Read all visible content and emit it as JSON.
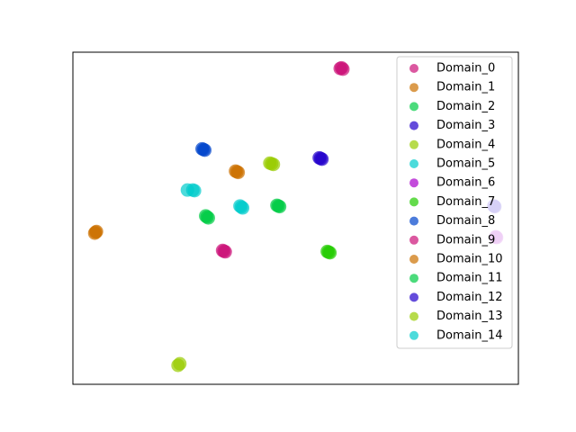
{
  "chart_data": {
    "type": "scatter",
    "xlim": [
      0,
      100
    ],
    "ylim": [
      0,
      100
    ],
    "legend": "upper right",
    "opacity": 0.7,
    "series": [
      {
        "name": "Domain_0",
        "color": "#cc1177",
        "x": [
          60.0,
          60.6,
          60.3
        ],
        "values": [
          95.1,
          94.9,
          95.3
        ]
      },
      {
        "name": "Domain_1",
        "color": "#cc7000",
        "x": [
          5.1,
          5.3,
          4.9
        ],
        "values": [
          45.8,
          46.0,
          45.5
        ]
      },
      {
        "name": "Domain_2",
        "color": "#00cc44",
        "x": [
          30.1,
          29.8,
          30.4
        ],
        "values": [
          50.4,
          50.7,
          50.1
        ]
      },
      {
        "name": "Domain_3",
        "color": "#2200cc",
        "x": [
          94.5,
          94.7
        ],
        "values": [
          53.7,
          53.5
        ]
      },
      {
        "name": "Domain_4",
        "color": "#99cc00",
        "x": [
          44.6,
          44.2,
          45.0
        ],
        "values": [
          66.4,
          66.6,
          66.2
        ]
      },
      {
        "name": "Domain_5",
        "color": "#00cccc",
        "x": [
          37.8,
          37.5,
          38.1
        ],
        "values": [
          53.4,
          53.7,
          53.1
        ]
      },
      {
        "name": "Domain_6",
        "color": "#aa00cc",
        "x": [
          94.9,
          95.1
        ],
        "values": [
          44.4,
          44.2
        ]
      },
      {
        "name": "Domain_7",
        "color": "#22cc00",
        "x": [
          57.4,
          57.1,
          57.7
        ],
        "values": [
          39.8,
          40.0,
          39.6
        ]
      },
      {
        "name": "Domain_8",
        "color": "#0044cc",
        "x": [
          29.3,
          29.0,
          29.6
        ],
        "values": [
          70.7,
          70.9,
          70.5
        ]
      },
      {
        "name": "Domain_9",
        "color": "#cc1177",
        "x": [
          33.9,
          33.6,
          34.2
        ],
        "values": [
          40.1,
          40.3,
          39.9
        ]
      },
      {
        "name": "Domain_10",
        "color": "#cc7000",
        "x": [
          36.8,
          36.5,
          37.1
        ],
        "values": [
          64.0,
          64.2,
          63.8
        ]
      },
      {
        "name": "Domain_11",
        "color": "#00cc44",
        "x": [
          46.1,
          45.8,
          46.4
        ],
        "values": [
          53.7,
          53.9,
          53.5
        ]
      },
      {
        "name": "Domain_12",
        "color": "#2200cc",
        "x": [
          55.6,
          55.3,
          55.9
        ],
        "values": [
          68.0,
          68.2,
          67.8
        ]
      },
      {
        "name": "Domain_13",
        "color": "#99cc00",
        "x": [
          23.6,
          24.0
        ],
        "values": [
          5.7,
          6.2
        ]
      },
      {
        "name": "Domain_14",
        "color": "#00cccc",
        "x": [
          26.9,
          25.7,
          27.3
        ],
        "values": [
          58.5,
          58.5,
          58.3
        ]
      }
    ]
  }
}
